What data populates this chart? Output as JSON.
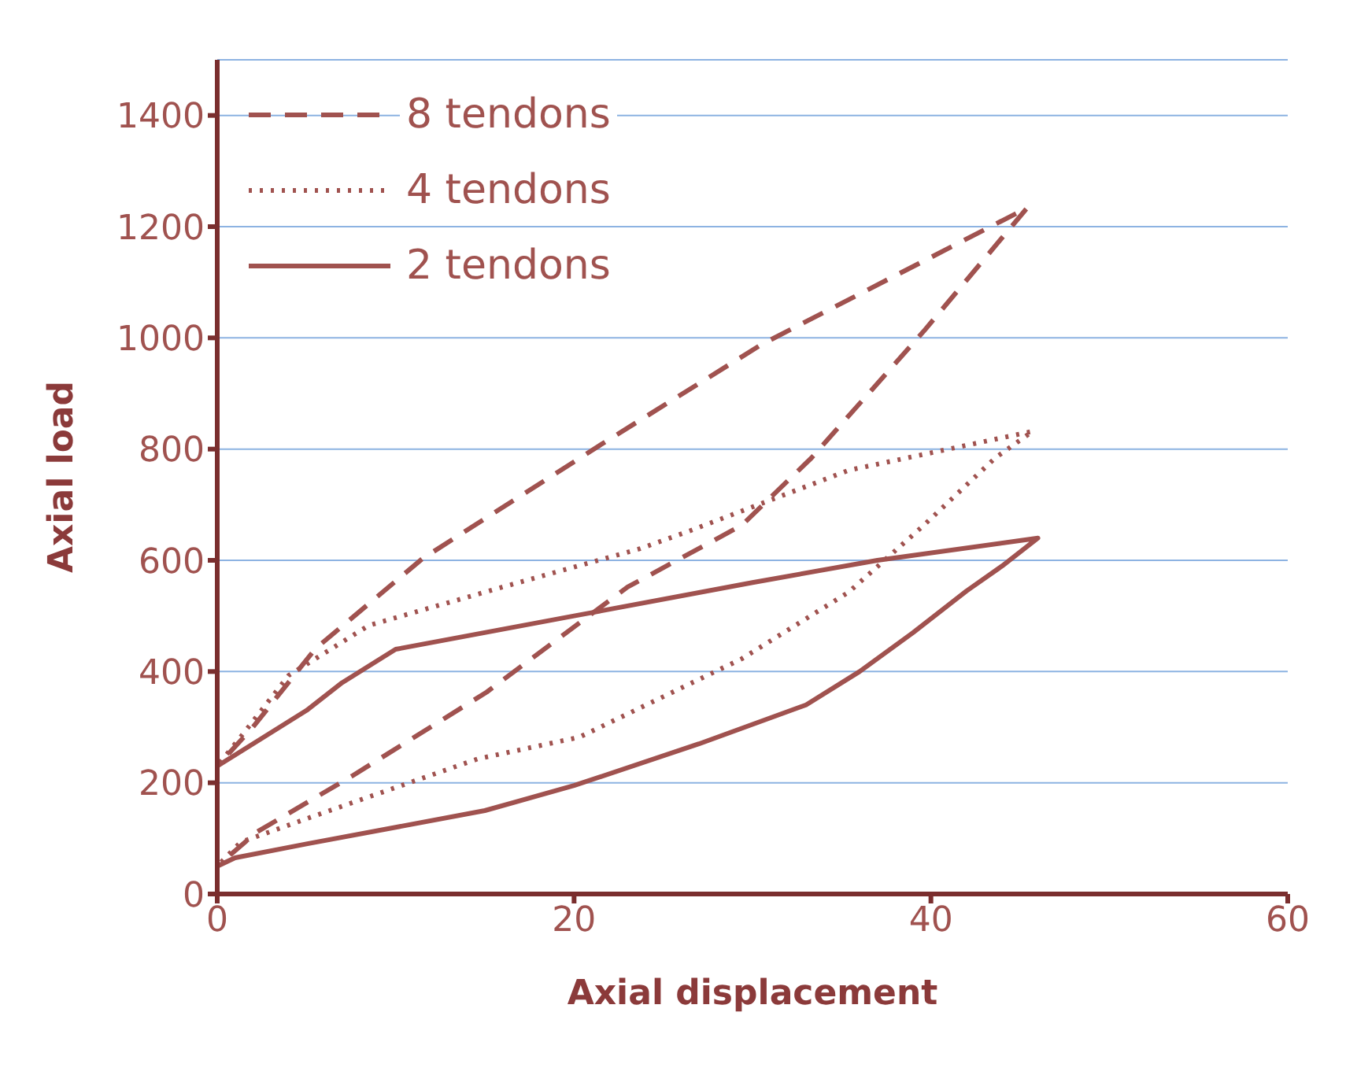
{
  "chart_data": {
    "type": "line",
    "xlabel": "Axial displacement",
    "ylabel": "Axial load",
    "xlim": [
      0,
      60
    ],
    "xticks": [
      0,
      20,
      40,
      60
    ],
    "ylim": [
      0,
      1500
    ],
    "yticks": [
      0,
      200,
      400,
      600,
      800,
      1000,
      1200,
      1400
    ],
    "grid": "y",
    "legend": "top left",
    "marker": "none",
    "series": [
      {
        "name": "8 tendons",
        "color": "#a0524f",
        "line_style": "dashed",
        "x": [
          0,
          0,
          2,
          5.5,
          11.5,
          21.5,
          30.5,
          45.4,
          39.6,
          33.3,
          29.4,
          23,
          15.1,
          7.6,
          2.2,
          0
        ],
        "values": [
          0,
          230,
          300,
          441,
          603,
          808,
          988,
          1234,
          1012,
          784,
          663,
          552,
          363,
          213,
          111,
          50
        ]
      },
      {
        "name": "4 tendons",
        "color": "#a0524f",
        "line_style": "dotted",
        "x": [
          0,
          0,
          1.5,
          4,
          8.5,
          16,
          23.7,
          26.4,
          35.4,
          45.7,
          43.6,
          39.6,
          35.4,
          29.4,
          20.3,
          14.6,
          5.5,
          1.3,
          0
        ],
        "values": [
          0,
          230,
          290,
          393,
          483,
          552,
          621,
          652,
          762,
          832,
          784,
          663,
          543,
          423,
          282,
          243,
          141,
          93,
          50
        ]
      },
      {
        "name": "2 tendons",
        "color": "#a0524f",
        "line_style": "solid",
        "x": [
          0,
          0,
          2,
          5,
          7,
          10,
          20,
          30,
          37,
          46,
          44,
          42,
          39,
          36,
          33,
          27,
          20,
          15,
          10,
          5,
          1,
          0
        ],
        "values": [
          0,
          230,
          270,
          330,
          380,
          440,
          500,
          560,
          600,
          640,
          590,
          545,
          470,
          400,
          340,
          270,
          195,
          150,
          120,
          90,
          65,
          50
        ]
      }
    ]
  }
}
